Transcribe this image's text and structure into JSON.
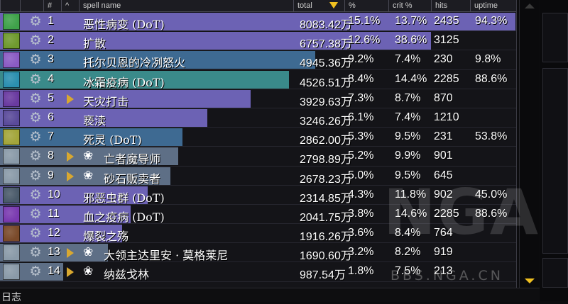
{
  "columns": {
    "num": "#",
    "caret": "^",
    "spell_name": "spell name",
    "total": "total",
    "pct": "%",
    "crit": "crit %",
    "hits": "hits",
    "uptime": "uptime"
  },
  "colors": {
    "bar_purple": "#6c62b4",
    "bar_teal": "#3a8a8a",
    "bar_slate": "#3e6a92",
    "sort_arrow": "#f0c020"
  },
  "rows": [
    {
      "num": "1",
      "name": "恶性病变 (DoT)",
      "total": "8083.42万",
      "pct": "15.1%",
      "crit": "13.7%",
      "hits": "2435",
      "uptime": "94.3%",
      "bar": 1.0,
      "bar_color": "#6c62b4",
      "icon_color": "#3fa24a",
      "expandable": false,
      "pet": false
    },
    {
      "num": "2",
      "name": "扩散",
      "total": "6757.38万",
      "pct": "12.6%",
      "crit": "38.6%",
      "hits": "3125",
      "uptime": "",
      "bar": 0.836,
      "bar_color": "#6c62b4",
      "icon_color": "#6f9a2e",
      "expandable": false,
      "pet": false
    },
    {
      "num": "3",
      "name": "托尔贝恩的冷冽怒火",
      "total": "4945.36万",
      "pct": "9.2%",
      "crit": "7.4%",
      "hits": "230",
      "uptime": "9.8%",
      "bar": 0.612,
      "bar_color": "#3e6a92",
      "icon_color": "#8a5bc4",
      "expandable": false,
      "pet": false
    },
    {
      "num": "4",
      "name": "冰霜疫病 (DoT)",
      "total": "4526.51万",
      "pct": "8.4%",
      "crit": "14.4%",
      "hits": "2285",
      "uptime": "88.6%",
      "bar": 0.56,
      "bar_color": "#3a8a8a",
      "icon_color": "#2b8fb0",
      "expandable": false,
      "pet": false
    },
    {
      "num": "5",
      "name": "天灾打击",
      "total": "3929.63万",
      "pct": "7.3%",
      "crit": "8.7%",
      "hits": "870",
      "uptime": "",
      "bar": 0.486,
      "bar_color": "#6c62b4",
      "icon_color": "#6a3aa0",
      "expandable": true,
      "pet": false
    },
    {
      "num": "6",
      "name": "亵渎",
      "total": "3246.26万",
      "pct": "6.1%",
      "crit": "7.4%",
      "hits": "1210",
      "uptime": "",
      "bar": 0.402,
      "bar_color": "#6c62b4",
      "icon_color": "#5a4a9a",
      "expandable": false,
      "pet": false
    },
    {
      "num": "7",
      "name": "死灵 (DoT)",
      "total": "2862.00万",
      "pct": "5.3%",
      "crit": "9.5%",
      "hits": "231",
      "uptime": "53.8%",
      "bar": 0.354,
      "bar_color": "#3e6a92",
      "icon_color": "#a3a53a",
      "expandable": false,
      "pet": false
    },
    {
      "num": "8",
      "name": "亡者魔导师",
      "total": "2798.89万",
      "pct": "5.2%",
      "crit": "9.9%",
      "hits": "901",
      "uptime": "",
      "bar": 0.346,
      "bar_color": "#5e6f86",
      "icon_color": "#8a9aa8",
      "expandable": true,
      "pet": true
    },
    {
      "num": "9",
      "name": "砂石贩卖者",
      "total": "2678.23万",
      "pct": "5.0%",
      "crit": "9.5%",
      "hits": "645",
      "uptime": "",
      "bar": 0.331,
      "bar_color": "#5e6f86",
      "icon_color": "#8a9aa8",
      "expandable": true,
      "pet": true
    },
    {
      "num": "10",
      "name": "邪恶虫群 (DoT)",
      "total": "2314.85万",
      "pct": "4.3%",
      "crit": "11.8%",
      "hits": "902",
      "uptime": "45.0%",
      "bar": 0.286,
      "bar_color": "#6c62b4",
      "icon_color": "#4a5a6a",
      "expandable": false,
      "pet": false
    },
    {
      "num": "11",
      "name": "血之疫病 (DoT)",
      "total": "2041.75万",
      "pct": "3.8%",
      "crit": "14.6%",
      "hits": "2285",
      "uptime": "88.6%",
      "bar": 0.253,
      "bar_color": "#6c62b4",
      "icon_color": "#7a3ab0",
      "expandable": false,
      "pet": false
    },
    {
      "num": "12",
      "name": "爆裂之殇",
      "total": "1916.26万",
      "pct": "3.6%",
      "crit": "8.4%",
      "hits": "764",
      "uptime": "",
      "bar": 0.237,
      "bar_color": "#6c62b4",
      "icon_color": "#7a4a2a",
      "expandable": false,
      "pet": false
    },
    {
      "num": "13",
      "name": "大领主达里安 · 莫格莱尼",
      "total": "1690.60万",
      "pct": "3.2%",
      "crit": "8.2%",
      "hits": "919",
      "uptime": "",
      "bar": 0.209,
      "bar_color": "#5e6f86",
      "icon_color": "#8a9aa8",
      "expandable": true,
      "pet": true
    },
    {
      "num": "14",
      "name": "纳兹戈林",
      "total": "987.54万",
      "pct": "1.8%",
      "crit": "7.5%",
      "hits": "213",
      "uptime": "",
      "bar": 0.122,
      "bar_color": "#5e6f86",
      "icon_color": "#8a9aa8",
      "expandable": true,
      "pet": true
    }
  ],
  "bottom": {
    "label": "日志"
  },
  "watermark": {
    "logo": "NGA",
    "url": "BBS.NGA.CN"
  }
}
